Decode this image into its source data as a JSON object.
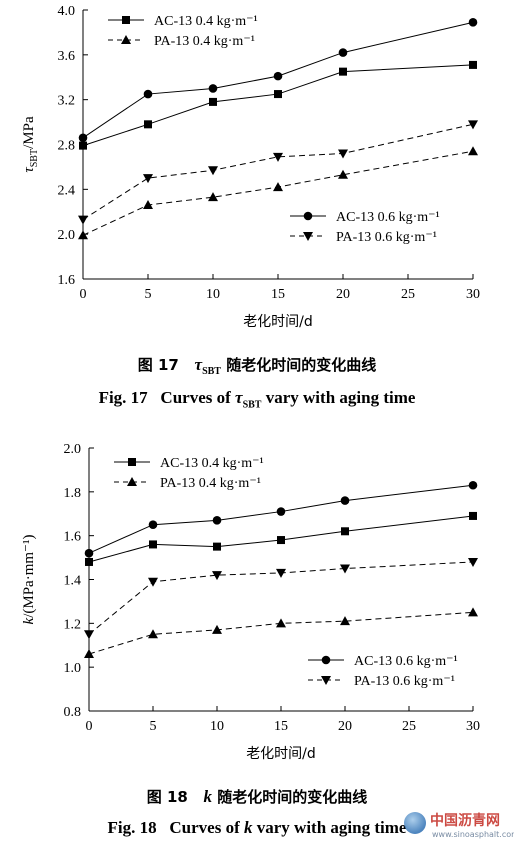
{
  "chart_data": [
    {
      "id": "fig17",
      "type": "line",
      "xlabel": "老化时间/d",
      "ylabel": "τSBT/MPa",
      "ylabel_main": "τ",
      "ylabel_sub": "SBT",
      "ylabel_unit": "/MPa",
      "xlim": [
        0,
        30
      ],
      "ylim": [
        1.6,
        4.0
      ],
      "x_ticks": [
        "0",
        "5",
        "10",
        "15",
        "20",
        "25",
        "30"
      ],
      "y_ticks": [
        "1.6",
        "2.0",
        "2.4",
        "2.8",
        "3.2",
        "3.6",
        "4.0"
      ],
      "x": [
        0,
        5,
        10,
        15,
        20,
        30
      ],
      "legends": [
        {
          "position": "top-left",
          "entries": [
            "AC-13 0.4 kg·m⁻¹",
            "PA-13 0.4 kg·m⁻¹"
          ]
        },
        {
          "position": "bottom-right",
          "entries": [
            "AC-13 0.6 kg·m⁻¹",
            "PA-13 0.6 kg·m⁻¹"
          ]
        }
      ],
      "series": [
        {
          "name": "AC-13 0.4 kg·m⁻¹",
          "marker": "square",
          "dash": "solid",
          "values": [
            2.79,
            2.98,
            3.18,
            3.25,
            3.45,
            3.51
          ]
        },
        {
          "name": "PA-13 0.4 kg·m⁻¹",
          "marker": "triangle-up",
          "dash": "dashed",
          "values": [
            1.99,
            2.26,
            2.33,
            2.42,
            2.53,
            2.74
          ]
        },
        {
          "name": "AC-13 0.6 kg·m⁻¹",
          "marker": "circle",
          "dash": "solid",
          "values": [
            2.86,
            3.25,
            3.3,
            3.41,
            3.62,
            3.89
          ]
        },
        {
          "name": "PA-13 0.6 kg·m⁻¹",
          "marker": "triangle-down",
          "dash": "dashed",
          "values": [
            2.13,
            2.5,
            2.57,
            2.69,
            2.72,
            2.98
          ]
        }
      ],
      "caption_zh": [
        "图 17",
        "τ",
        "SBT",
        "随老化时间的变化曲线"
      ],
      "caption_en": [
        "Fig. 17",
        "Curves of",
        "τ",
        "SBT",
        "vary with aging time"
      ]
    },
    {
      "id": "fig18",
      "type": "line",
      "xlabel": "老化时间/d",
      "ylabel": "k/(MPa·mm⁻¹)",
      "ylabel_main": "k",
      "ylabel_unit": "/(MPa·mm⁻¹)",
      "xlim": [
        0,
        30
      ],
      "ylim": [
        0.8,
        2.0
      ],
      "x_ticks": [
        "0",
        "5",
        "10",
        "15",
        "20",
        "25",
        "30"
      ],
      "y_ticks": [
        "0.8",
        "1.0",
        "1.2",
        "1.4",
        "1.6",
        "1.8",
        "2.0"
      ],
      "x": [
        0,
        5,
        10,
        15,
        20,
        30
      ],
      "legends": [
        {
          "position": "top-left",
          "entries": [
            "AC-13 0.4 kg·m⁻¹",
            "PA-13 0.4 kg·m⁻¹"
          ]
        },
        {
          "position": "bottom-right",
          "entries": [
            "AC-13 0.6 kg·m⁻¹",
            "PA-13 0.6 kg·m⁻¹"
          ]
        }
      ],
      "series": [
        {
          "name": "AC-13 0.4 kg·m⁻¹",
          "marker": "square",
          "dash": "solid",
          "values": [
            1.48,
            1.56,
            1.55,
            1.58,
            1.62,
            1.69
          ]
        },
        {
          "name": "PA-13 0.4 kg·m⁻¹",
          "marker": "triangle-up",
          "dash": "dashed",
          "values": [
            1.06,
            1.15,
            1.17,
            1.2,
            1.21,
            1.25
          ]
        },
        {
          "name": "AC-13 0.6 kg·m⁻¹",
          "marker": "circle",
          "dash": "solid",
          "values": [
            1.52,
            1.65,
            1.67,
            1.71,
            1.76,
            1.83
          ]
        },
        {
          "name": "PA-13 0.6 kg·m⁻¹",
          "marker": "triangle-down",
          "dash": "dashed",
          "values": [
            1.15,
            1.39,
            1.42,
            1.43,
            1.45,
            1.48
          ]
        }
      ],
      "caption_zh": [
        "图 18",
        "k",
        "随老化时间的变化曲线"
      ],
      "caption_en": [
        "Fig. 18",
        "Curves of",
        "k",
        "vary with aging time"
      ]
    }
  ],
  "watermark": {
    "name_cn": "中国沥青网",
    "url": "www.sinoasphalt.com",
    "color": "#c7372f"
  }
}
